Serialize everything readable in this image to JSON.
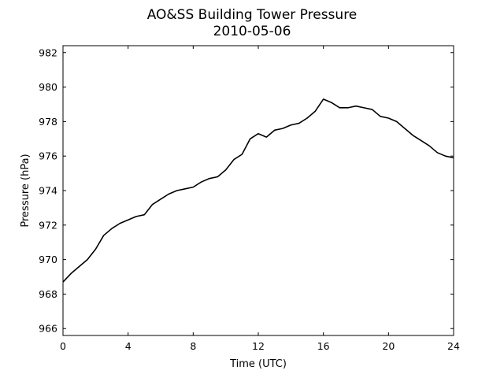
{
  "chart_data": {
    "type": "line",
    "title": "AO&SS Building Tower Pressure",
    "subtitle": "2010-05-06",
    "xlabel": "Time (UTC)",
    "ylabel": "Pressure (hPa)",
    "xlim": [
      0,
      24
    ],
    "ylim": [
      965.6,
      982.4
    ],
    "xticks": [
      0,
      4,
      8,
      12,
      16,
      20,
      24
    ],
    "yticks": [
      966,
      968,
      970,
      972,
      974,
      976,
      978,
      980,
      982
    ],
    "grid": false,
    "line_color": "#000000",
    "series": [
      {
        "x": [
          0,
          0.5,
          1,
          1.5,
          2,
          2.5,
          3,
          3.5,
          4,
          4.5,
          5,
          5.5,
          6,
          6.5,
          7,
          7.5,
          8,
          8.5,
          9,
          9.5,
          10,
          10.5,
          11,
          11.5,
          12,
          12.5,
          13,
          13.5,
          14,
          14.5,
          15,
          15.5,
          16,
          16.5,
          17,
          17.5,
          18,
          18.5,
          19,
          19.5,
          20,
          20.5,
          21,
          21.5,
          22,
          22.5,
          23,
          23.5,
          24
        ],
        "values": [
          968.7,
          969.2,
          969.6,
          970.0,
          970.6,
          971.4,
          971.8,
          972.1,
          972.3,
          972.5,
          972.6,
          973.2,
          973.5,
          973.8,
          974.0,
          974.1,
          974.2,
          974.5,
          974.7,
          974.8,
          975.2,
          975.8,
          976.1,
          977.0,
          977.3,
          977.1,
          977.5,
          977.6,
          977.8,
          977.9,
          978.2,
          978.6,
          979.3,
          979.1,
          978.8,
          978.8,
          978.9,
          978.8,
          978.7,
          978.3,
          978.2,
          978.0,
          977.6,
          977.2,
          976.9,
          976.6,
          976.2,
          976.0,
          975.9
        ]
      }
    ]
  }
}
